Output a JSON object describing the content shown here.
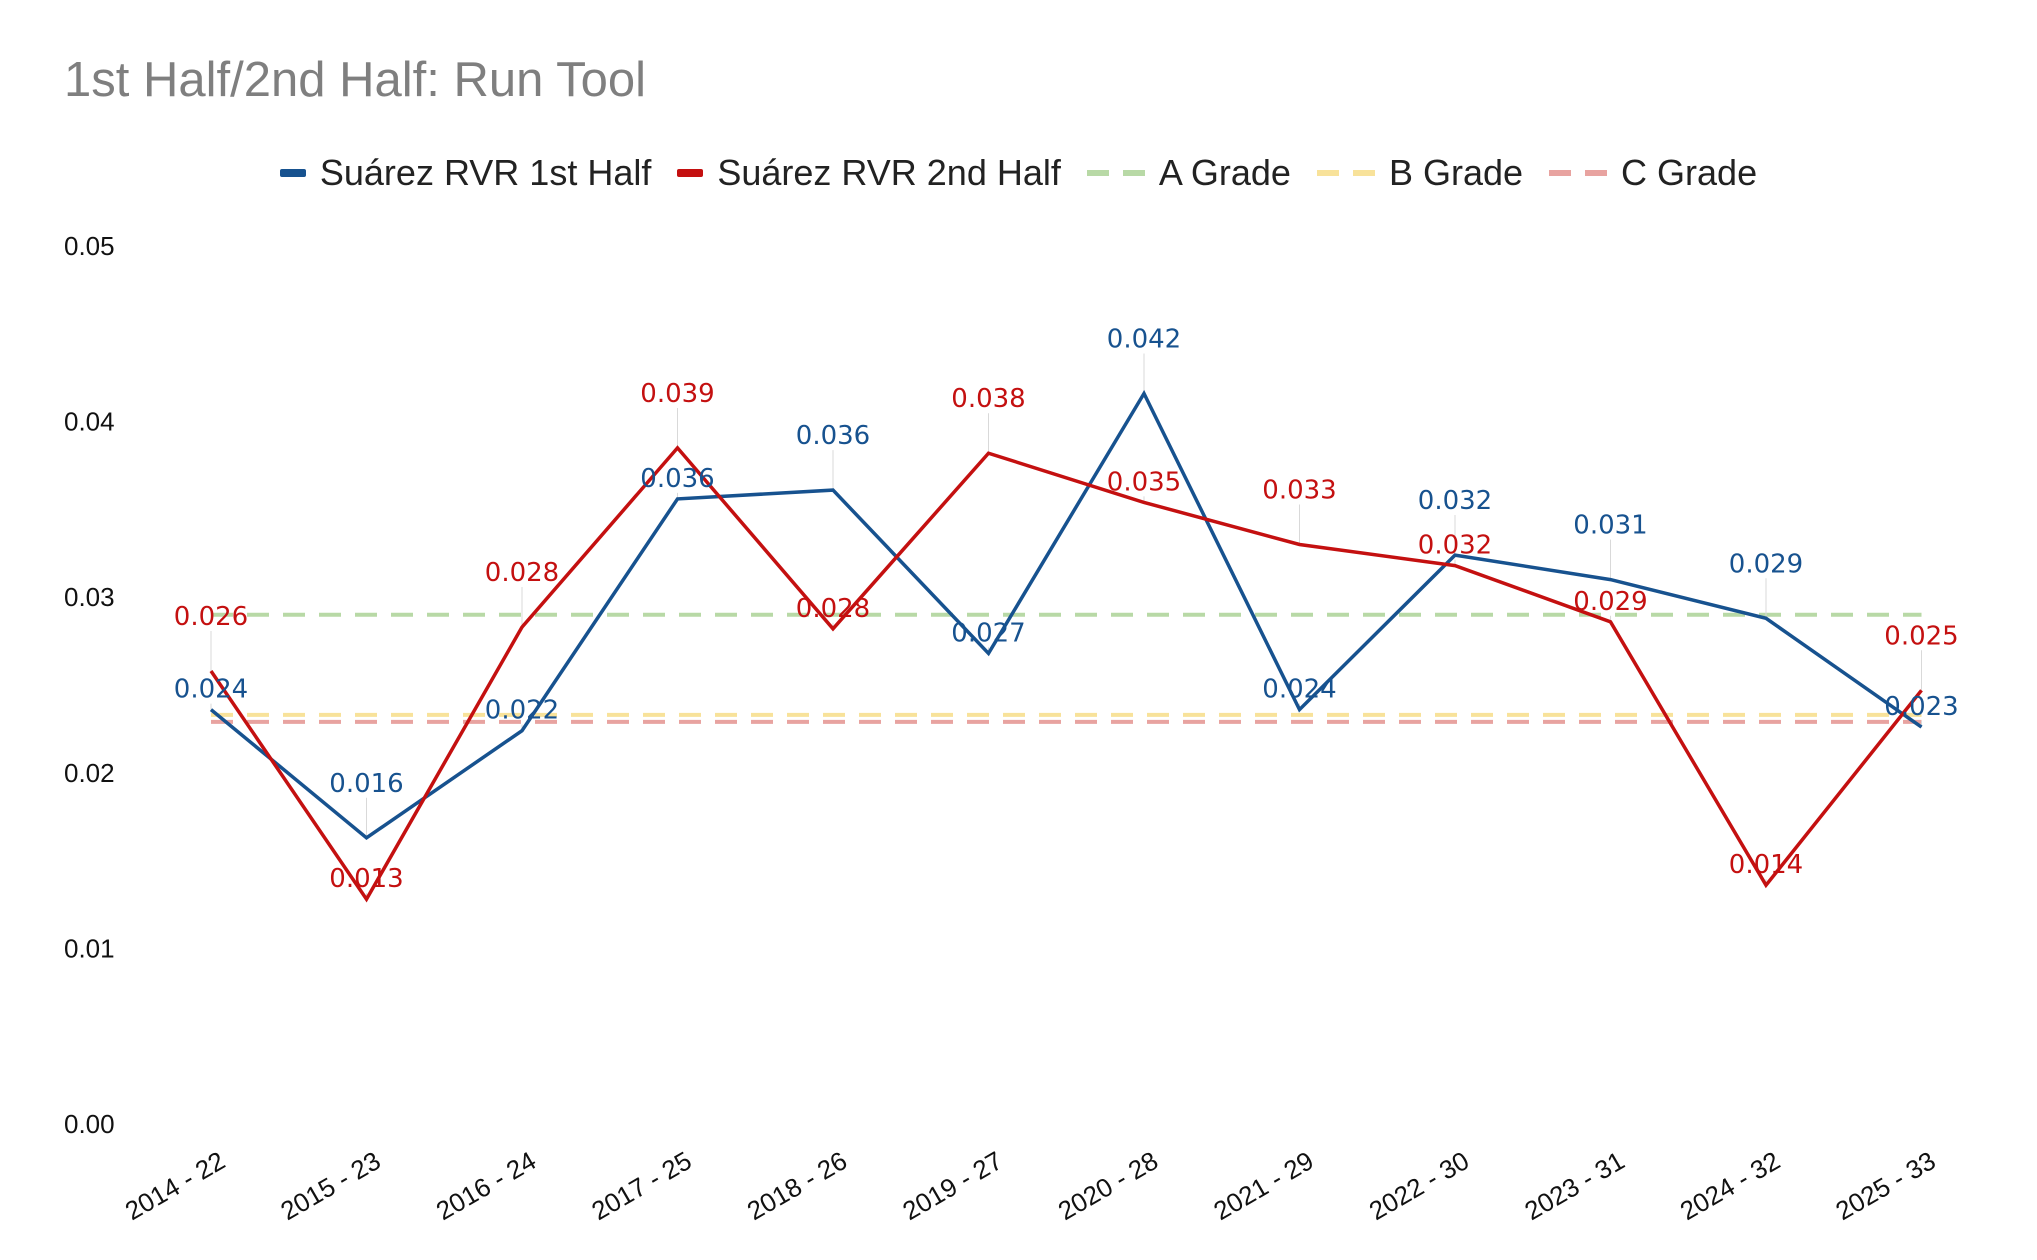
{
  "chart_data": {
    "type": "line",
    "title": "1st Half/2nd Half: Run Tool",
    "xlabel": "",
    "ylabel": "",
    "ylim": [
      0,
      0.05
    ],
    "y_ticks": [
      "0.00",
      "0.01",
      "0.02",
      "0.03",
      "0.04",
      "0.05"
    ],
    "y_tick_values": [
      0,
      0.01,
      0.02,
      0.03,
      0.04,
      0.05
    ],
    "grid": false,
    "legend_position": "top",
    "categories": [
      "2014 - 22",
      "2015 - 23",
      "2016 - 24",
      "2017 - 25",
      "2018 - 26",
      "2019 - 27",
      "2020 - 28",
      "2021 - 29",
      "2022 - 30",
      "2023 - 31",
      "2024 - 32",
      "2025 - 33"
    ],
    "series": [
      {
        "name": "Suárez RVR 1st Half",
        "color": "#17528f",
        "style": "solid",
        "values": [
          0.0236,
          0.0163,
          0.0224,
          0.0356,
          0.0361,
          0.0268,
          0.0416,
          0.0236,
          0.0324,
          0.031,
          0.0288,
          0.0226
        ],
        "labels": [
          "0.024",
          "0.016",
          "0.022",
          "0.036",
          "0.036",
          "0.027",
          "0.042",
          "0.024",
          "0.032",
          "0.031",
          "0.029",
          "0.023"
        ]
      },
      {
        "name": "Suárez RVR 2nd Half",
        "color": "#c41010",
        "style": "solid",
        "values": [
          0.0258,
          0.0128,
          0.0283,
          0.0385,
          0.0282,
          0.0382,
          0.0354,
          0.033,
          0.0318,
          0.0286,
          0.0136,
          0.0247
        ],
        "labels": [
          "0.026",
          "0.013",
          "0.028",
          "0.039",
          "0.028",
          "0.038",
          "0.035",
          "0.033",
          "0.032",
          "0.029",
          "0.014",
          "0.025"
        ]
      },
      {
        "name": "A Grade",
        "color": "#b8d9a6",
        "style": "dashed",
        "values": [
          0.029,
          0.029,
          0.029,
          0.029,
          0.029,
          0.029,
          0.029,
          0.029,
          0.029,
          0.029,
          0.029,
          0.029
        ]
      },
      {
        "name": "B Grade",
        "color": "#f8e29a",
        "style": "dashed",
        "values": [
          0.0233,
          0.0233,
          0.0233,
          0.0233,
          0.0233,
          0.0233,
          0.0233,
          0.0233,
          0.0233,
          0.0233,
          0.0233,
          0.0233
        ]
      },
      {
        "name": "C Grade",
        "color": "#e8a3a0",
        "style": "dashed",
        "values": [
          0.0229,
          0.0229,
          0.0229,
          0.0229,
          0.0229,
          0.0229,
          0.0229,
          0.0229,
          0.0229,
          0.0229,
          0.0229,
          0.0229
        ]
      }
    ]
  }
}
